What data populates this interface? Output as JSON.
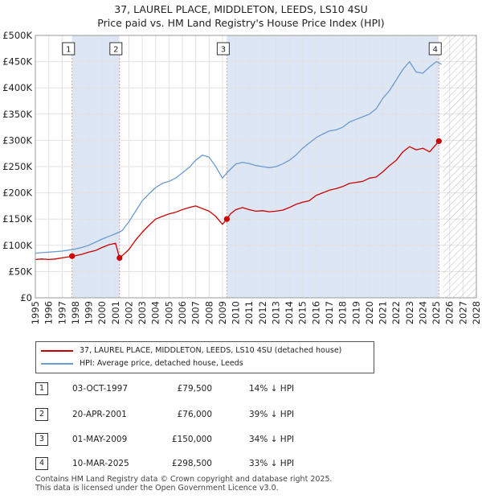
{
  "title_line1": "37, LAUREL PLACE, MIDDLETON, LEEDS, LS10 4SU",
  "title_line2": "Price paid vs. HM Land Registry's House Price Index (HPI)",
  "colors": {
    "property": "#cc0000",
    "hpi": "#6b9bd2",
    "sale_shade": "#dde6f5",
    "marker_line": "#d9a0a0"
  },
  "chart_data": {
    "type": "line",
    "xlim": [
      1995,
      2028
    ],
    "ylim": [
      0,
      500000
    ],
    "y_ticks": [
      0,
      50000,
      100000,
      150000,
      200000,
      250000,
      300000,
      350000,
      400000,
      450000,
      500000
    ],
    "y_tick_labels": [
      "£0",
      "£50K",
      "£100K",
      "£150K",
      "£200K",
      "£250K",
      "£300K",
      "£350K",
      "£400K",
      "£450K",
      "£500K"
    ],
    "x_tick_labels": [
      "1995",
      "1996",
      "1997",
      "1998",
      "1999",
      "2000",
      "2001",
      "2002",
      "2003",
      "2004",
      "2005",
      "2006",
      "2007",
      "2008",
      "2009",
      "2010",
      "2011",
      "2012",
      "2013",
      "2014",
      "2015",
      "2016",
      "2017",
      "2018",
      "2019",
      "2020",
      "2021",
      "2022",
      "2023",
      "2024",
      "2025",
      "2026",
      "2027",
      "2028"
    ],
    "hatch_start": 2025.5,
    "series": [
      {
        "name": "37, LAUREL PLACE, MIDDLETON, LEEDS, LS10 4SU (detached house)",
        "x": [
          1995,
          1995.5,
          1996,
          1996.5,
          1997,
          1997.5,
          1997.75,
          1998,
          1998.5,
          1999,
          1999.5,
          2000,
          2000.5,
          2001.0,
          2001.3,
          2001.5,
          2002,
          2002.5,
          2003,
          2003.5,
          2004,
          2004.5,
          2005,
          2005.5,
          2006,
          2006.5,
          2007,
          2007.5,
          2008,
          2008.5,
          2009.0,
          2009.33,
          2009.6,
          2010,
          2010.5,
          2011,
          2011.5,
          2012,
          2012.5,
          2013,
          2013.5,
          2014,
          2014.5,
          2015,
          2015.5,
          2016,
          2016.5,
          2017,
          2017.5,
          2018,
          2018.5,
          2019,
          2019.5,
          2020,
          2020.5,
          2021,
          2021.5,
          2022,
          2022.5,
          2023,
          2023.5,
          2024,
          2024.5,
          2025.19,
          2025.4
        ],
        "y": [
          73000,
          74000,
          73000,
          74000,
          76000,
          78000,
          79500,
          80000,
          83000,
          87000,
          90000,
          96000,
          101000,
          104000,
          76000,
          80000,
          92000,
          110000,
          125000,
          138000,
          150000,
          155000,
          160000,
          163000,
          168000,
          172000,
          175000,
          170000,
          165000,
          155000,
          140000,
          150000,
          160000,
          168000,
          172000,
          168000,
          165000,
          166000,
          164000,
          165000,
          167000,
          172000,
          178000,
          182000,
          185000,
          195000,
          200000,
          205000,
          208000,
          212000,
          218000,
          220000,
          222000,
          228000,
          230000,
          240000,
          252000,
          262000,
          278000,
          288000,
          282000,
          285000,
          278000,
          298500,
          300000
        ]
      },
      {
        "name": "HPI: Average price, detached house, Leeds",
        "x": [
          1995,
          1995.5,
          1996,
          1996.5,
          1997,
          1997.5,
          1998,
          1998.5,
          1999,
          1999.5,
          2000,
          2000.5,
          2001,
          2001.5,
          2002,
          2002.5,
          2003,
          2003.5,
          2004,
          2004.5,
          2005,
          2005.5,
          2006,
          2006.5,
          2007,
          2007.5,
          2008,
          2008.5,
          2009.0,
          2009.4,
          2009.8,
          2010,
          2010.5,
          2011,
          2011.5,
          2012,
          2012.5,
          2013,
          2013.5,
          2014,
          2014.5,
          2015,
          2015.5,
          2016,
          2016.5,
          2017,
          2017.5,
          2018,
          2018.5,
          2019,
          2019.5,
          2020,
          2020.5,
          2021,
          2021.5,
          2022,
          2022.5,
          2023,
          2023.5,
          2024,
          2024.5,
          2025,
          2025.4
        ],
        "y": [
          85000,
          86000,
          87000,
          88000,
          89000,
          91000,
          93000,
          96000,
          100000,
          106000,
          112000,
          117000,
          122000,
          128000,
          145000,
          165000,
          185000,
          198000,
          210000,
          218000,
          222000,
          228000,
          238000,
          248000,
          262000,
          272000,
          268000,
          250000,
          228000,
          240000,
          250000,
          255000,
          258000,
          256000,
          252000,
          250000,
          248000,
          250000,
          255000,
          262000,
          272000,
          285000,
          295000,
          305000,
          312000,
          318000,
          320000,
          325000,
          335000,
          340000,
          345000,
          350000,
          360000,
          380000,
          395000,
          415000,
          435000,
          450000,
          430000,
          428000,
          440000,
          450000,
          445000
        ]
      }
    ],
    "sales": [
      {
        "num": "1",
        "x": 1997.75,
        "price": 79500
      },
      {
        "num": "2",
        "x": 2001.3,
        "price": 76000
      },
      {
        "num": "3",
        "x": 2009.33,
        "price": 150000
      },
      {
        "num": "4",
        "x": 2025.19,
        "price": 298500
      }
    ],
    "shaded_periods": [
      [
        1997.75,
        2001.3
      ],
      [
        2009.33,
        2025.19
      ]
    ]
  },
  "legend": {
    "property_label": "37, LAUREL PLACE, MIDDLETON, LEEDS, LS10 4SU (detached house)",
    "hpi_label": "HPI: Average price, detached house, Leeds"
  },
  "sales_table": [
    {
      "num": "1",
      "date": "03-OCT-1997",
      "price": "£79,500",
      "hpi": "14% ↓ HPI"
    },
    {
      "num": "2",
      "date": "20-APR-2001",
      "price": "£76,000",
      "hpi": "39% ↓ HPI"
    },
    {
      "num": "3",
      "date": "01-MAY-2009",
      "price": "£150,000",
      "hpi": "34% ↓ HPI"
    },
    {
      "num": "4",
      "date": "10-MAR-2025",
      "price": "£298,500",
      "hpi": "33% ↓ HPI"
    }
  ],
  "footer_line1": "Contains HM Land Registry data © Crown copyright and database right 2025.",
  "footer_line2": "This data is licensed under the Open Government Licence v3.0."
}
